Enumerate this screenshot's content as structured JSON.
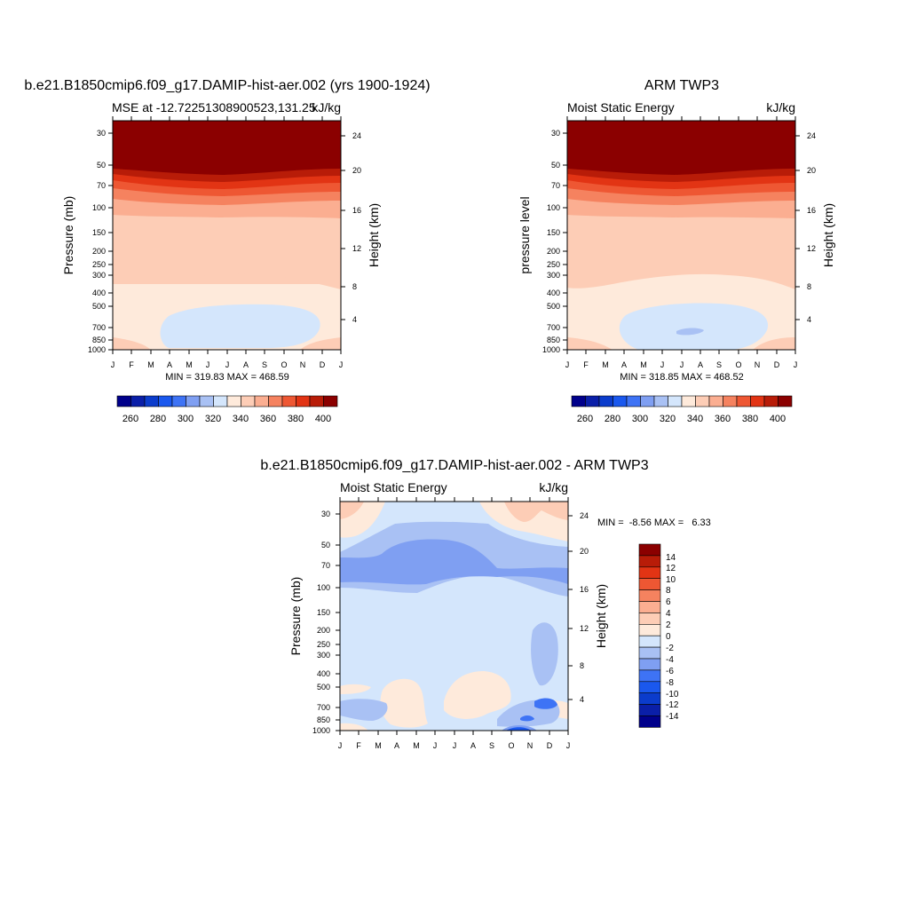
{
  "chart_data": [
    {
      "type": "heatmap",
      "title": "b.e21.B1850cmip6.f09_g17.DAMIP-hist-aer.002 (yrs 1900-1924)",
      "subtitle_left": "MSE at -12.72251308900523,131.25",
      "subtitle_right": "kJ/kg",
      "ylabel": "Pressure (mb)",
      "ylabel_right": "Height (km)",
      "y_ticks": [
        "30",
        "50",
        "70",
        "100",
        "150",
        "200",
        "250",
        "300",
        "400",
        "500",
        "700",
        "850",
        "1000"
      ],
      "y_right_ticks": [
        "24",
        "20",
        "16",
        "12",
        "8",
        "4"
      ],
      "x_ticks": [
        "J",
        "F",
        "M",
        "A",
        "M",
        "J",
        "J",
        "A",
        "S",
        "O",
        "N",
        "D",
        "J"
      ],
      "stats": "MIN = 319.83 MAX = 468.59",
      "colorbar_labels": [
        "260",
        "280",
        "300",
        "320",
        "340",
        "360",
        "380",
        "400"
      ],
      "levels_top_down_mb": [
        30,
        52,
        58,
        65,
        75,
        85,
        100,
        125,
        320,
        500
      ],
      "level_values_kJkg": [
        400,
        390,
        380,
        370,
        360,
        350,
        340,
        335,
        330,
        320
      ]
    },
    {
      "type": "heatmap",
      "title": "ARM TWP3",
      "subtitle_left": "Moist Static Energy",
      "subtitle_right": "kJ/kg",
      "ylabel": "pressure level",
      "ylabel_right": "Height (km)",
      "y_ticks": [
        "30",
        "50",
        "70",
        "100",
        "150",
        "200",
        "250",
        "300",
        "400",
        "500",
        "700",
        "850",
        "1000"
      ],
      "y_right_ticks": [
        "24",
        "20",
        "16",
        "12",
        "8",
        "4"
      ],
      "x_ticks": [
        "J",
        "F",
        "M",
        "A",
        "M",
        "J",
        "J",
        "A",
        "S",
        "O",
        "N",
        "D",
        "J"
      ],
      "stats": "MIN = 318.85 MAX = 468.52",
      "colorbar_labels": [
        "260",
        "280",
        "300",
        "320",
        "340",
        "360",
        "380",
        "400"
      ]
    },
    {
      "type": "heatmap",
      "title": "b.e21.B1850cmip6.f09_g17.DAMIP-hist-aer.002 - ARM TWP3",
      "subtitle_left": "Moist Static Energy",
      "subtitle_right": "kJ/kg",
      "ylabel": "Pressure (mb)",
      "ylabel_right": "Height (km)",
      "y_ticks": [
        "30",
        "50",
        "70",
        "100",
        "150",
        "200",
        "250",
        "300",
        "400",
        "500",
        "700",
        "850",
        "1000"
      ],
      "y_right_ticks": [
        "24",
        "20",
        "16",
        "12",
        "8",
        "4"
      ],
      "x_ticks": [
        "J",
        "F",
        "M",
        "A",
        "M",
        "J",
        "J",
        "A",
        "S",
        "O",
        "N",
        "D",
        "J"
      ],
      "stats": "MIN =  -8.56 MAX =   6.33",
      "colorbar_labels": [
        "14",
        "12",
        "10",
        "8",
        "6",
        "4",
        "2",
        "0",
        "-2",
        "-4",
        "-6",
        "-8",
        "-10",
        "-12",
        "-14"
      ]
    }
  ],
  "colors": {
    "mse_scale": [
      "#00008b",
      "#0a1fa8",
      "#0b3ccc",
      "#1a58ee",
      "#3e73f5",
      "#7f9ff2",
      "#a9c1f4",
      "#d4e6fc",
      "#feeadb",
      "#fdcdb6",
      "#fbae91",
      "#f5825f",
      "#ee5733",
      "#e23414",
      "#b81c08",
      "#8b0000"
    ],
    "diff_scale": [
      "#8b0000",
      "#b81c08",
      "#e23414",
      "#ee5733",
      "#f5825f",
      "#fbae91",
      "#fdcdb6",
      "#feeadb",
      "#d4e6fc",
      "#a9c1f4",
      "#7f9ff2",
      "#3e73f5",
      "#1a58ee",
      "#0b3ccc",
      "#0a1fa8",
      "#00008b"
    ]
  }
}
